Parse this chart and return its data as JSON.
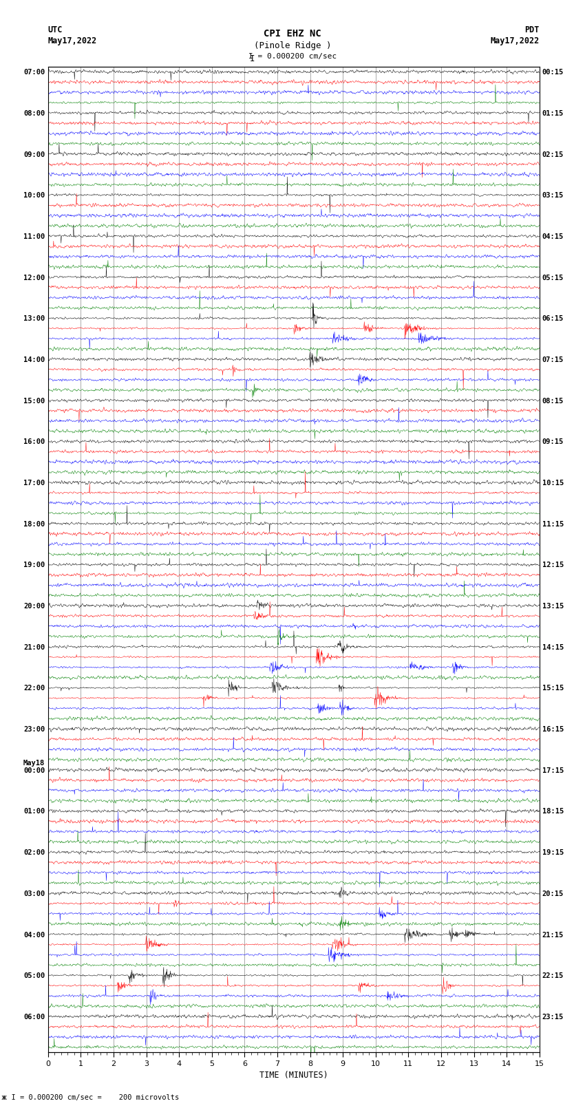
{
  "title_line1": "CPI EHZ NC",
  "title_line2": "(Pinole Ridge )",
  "scale_label": "I = 0.000200 cm/sec",
  "left_header_line1": "UTC",
  "left_header_line2": "May17,2022",
  "right_header_line1": "PDT",
  "right_header_line2": "May17,2022",
  "footer_label": "x I = 0.000200 cm/sec =    200 microvolts",
  "xlabel": "TIME (MINUTES)",
  "left_times": [
    "07:00",
    "08:00",
    "09:00",
    "10:00",
    "11:00",
    "12:00",
    "13:00",
    "14:00",
    "15:00",
    "16:00",
    "17:00",
    "18:00",
    "19:00",
    "20:00",
    "21:00",
    "22:00",
    "23:00",
    "00:00",
    "01:00",
    "02:00",
    "03:00",
    "04:00",
    "05:00",
    "06:00"
  ],
  "may18_row": 17,
  "right_times": [
    "00:15",
    "01:15",
    "02:15",
    "03:15",
    "04:15",
    "05:15",
    "06:15",
    "07:15",
    "08:15",
    "09:15",
    "10:15",
    "11:15",
    "12:15",
    "13:15",
    "14:15",
    "15:15",
    "16:15",
    "17:15",
    "18:15",
    "19:15",
    "20:15",
    "21:15",
    "22:15",
    "23:15"
  ],
  "n_rows": 24,
  "traces_per_row": 4,
  "colors": [
    "black",
    "red",
    "blue",
    "green"
  ],
  "minutes": 15,
  "bg_color": "white",
  "fig_width": 8.5,
  "fig_height": 16.13,
  "dpi": 100,
  "noise_scale": [
    0.28,
    0.32,
    0.3,
    0.22
  ],
  "spike_prob": 0.0015,
  "spike_scale": 3.0,
  "lw": 0.35
}
